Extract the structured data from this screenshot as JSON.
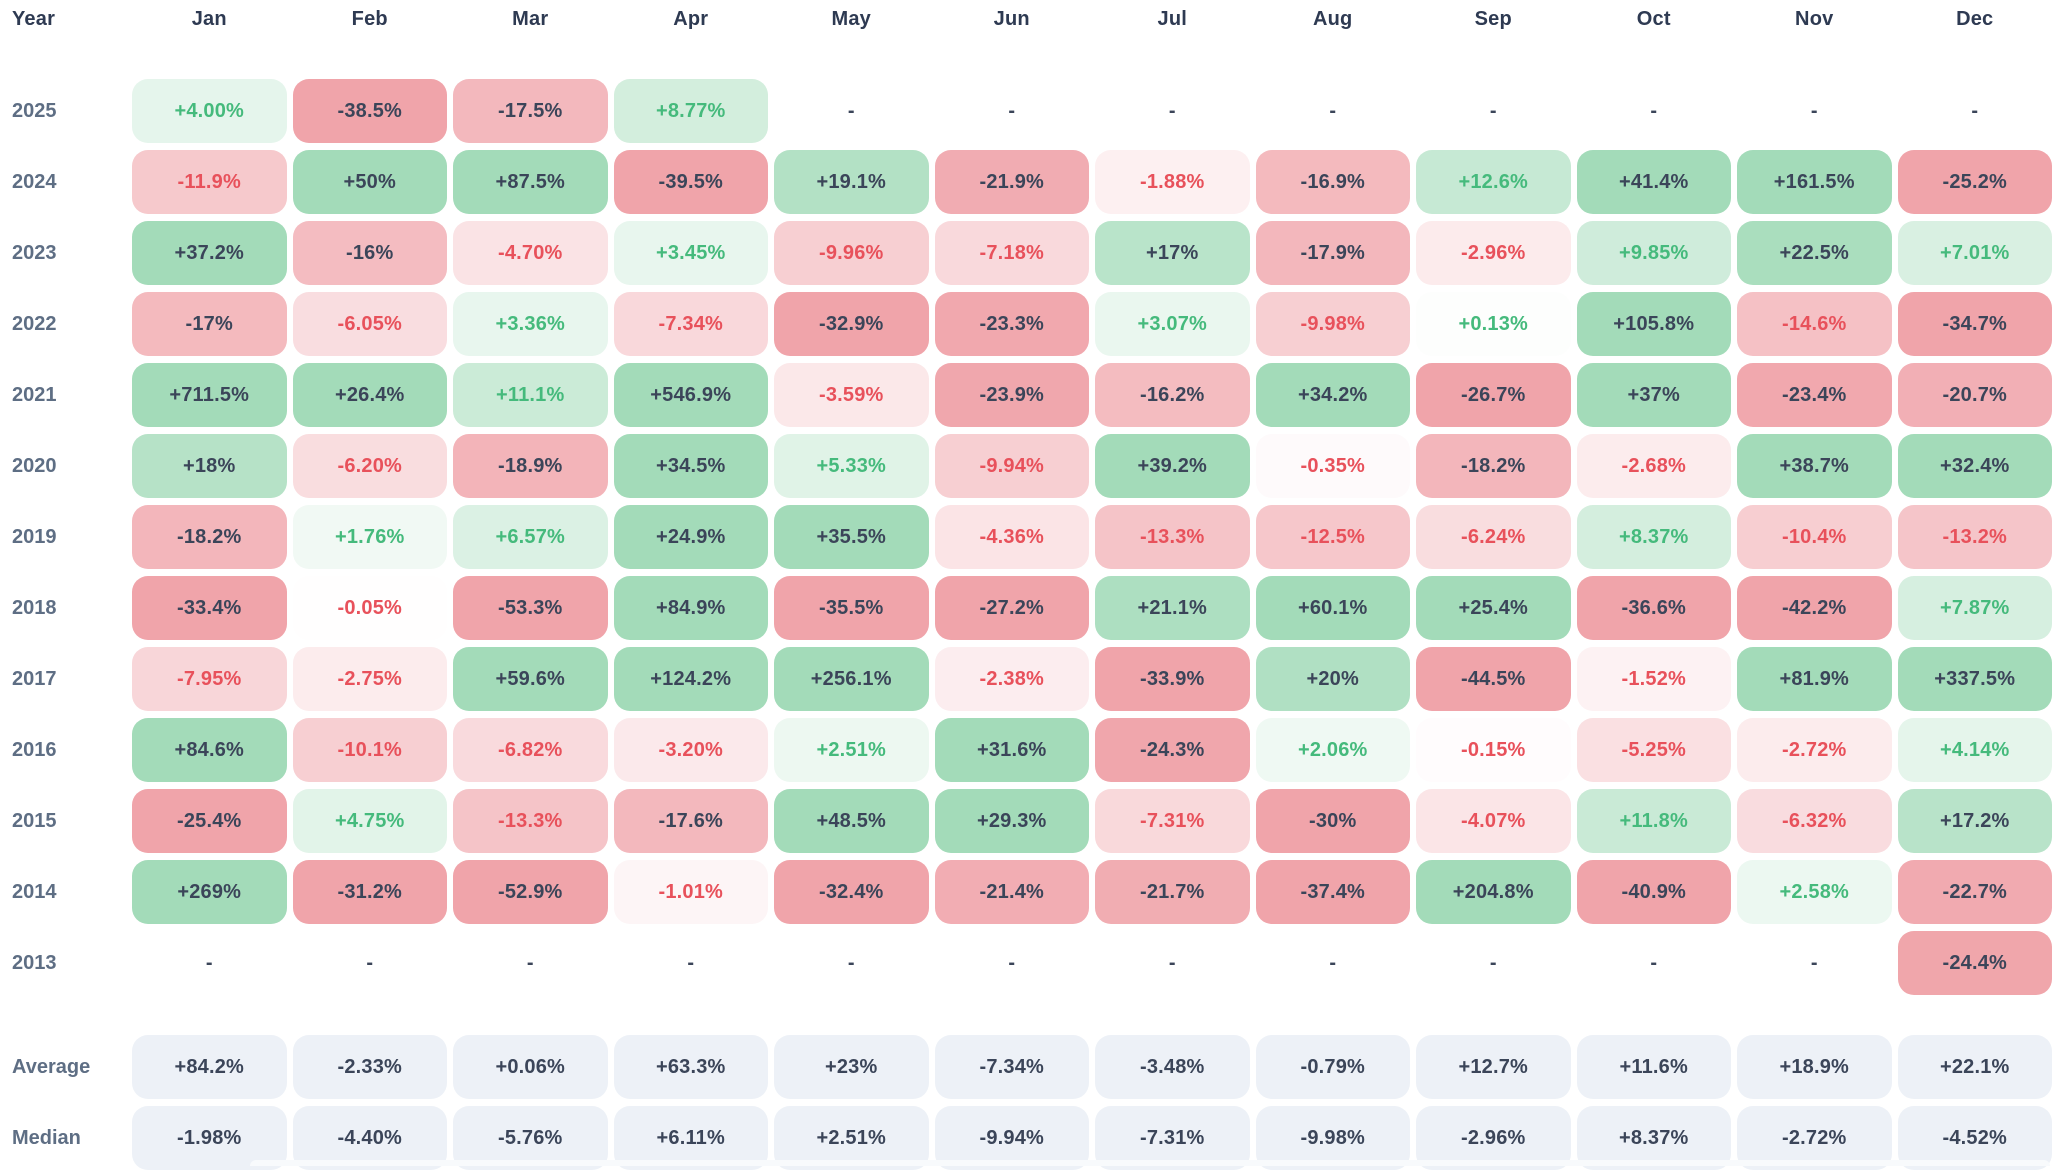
{
  "colors": {
    "background": "#ffffff",
    "positive_cell": "#a3dbb9",
    "negative_cell": "#f0a4aa",
    "positive_text": "#45ba7c",
    "negative_text": "#e8515b",
    "neutral_text": "#3b4559",
    "header_text": "#2e3a52",
    "row_label_text": "#5e6e84",
    "summary_cell_bg": "#edf1f7"
  },
  "table": {
    "year_header": "Year",
    "months": [
      "Jan",
      "Feb",
      "Mar",
      "Apr",
      "May",
      "Jun",
      "Jul",
      "Aug",
      "Sep",
      "Oct",
      "Nov",
      "Dec"
    ],
    "rows": [
      {
        "year": "2025",
        "values": [
          "+4.00%",
          "-38.5%",
          "-17.5%",
          "+8.77%",
          "-",
          "-",
          "-",
          "-",
          "-",
          "-",
          "-",
          "-"
        ]
      },
      {
        "year": "2024",
        "values": [
          "-11.9%",
          "+50%",
          "+87.5%",
          "-39.5%",
          "+19.1%",
          "-21.9%",
          "-1.88%",
          "-16.9%",
          "+12.6%",
          "+41.4%",
          "+161.5%",
          "-25.2%"
        ]
      },
      {
        "year": "2023",
        "values": [
          "+37.2%",
          "-16%",
          "-4.70%",
          "+3.45%",
          "-9.96%",
          "-7.18%",
          "+17%",
          "-17.9%",
          "-2.96%",
          "+9.85%",
          "+22.5%",
          "+7.01%"
        ]
      },
      {
        "year": "2022",
        "values": [
          "-17%",
          "-6.05%",
          "+3.36%",
          "-7.34%",
          "-32.9%",
          "-23.3%",
          "+3.07%",
          "-9.98%",
          "+0.13%",
          "+105.8%",
          "-14.6%",
          "-34.7%"
        ]
      },
      {
        "year": "2021",
        "values": [
          "+711.5%",
          "+26.4%",
          "+11.1%",
          "+546.9%",
          "-3.59%",
          "-23.9%",
          "-16.2%",
          "+34.2%",
          "-26.7%",
          "+37%",
          "-23.4%",
          "-20.7%"
        ]
      },
      {
        "year": "2020",
        "values": [
          "+18%",
          "-6.20%",
          "-18.9%",
          "+34.5%",
          "+5.33%",
          "-9.94%",
          "+39.2%",
          "-0.35%",
          "-18.2%",
          "-2.68%",
          "+38.7%",
          "+32.4%"
        ]
      },
      {
        "year": "2019",
        "values": [
          "-18.2%",
          "+1.76%",
          "+6.57%",
          "+24.9%",
          "+35.5%",
          "-4.36%",
          "-13.3%",
          "-12.5%",
          "-6.24%",
          "+8.37%",
          "-10.4%",
          "-13.2%"
        ]
      },
      {
        "year": "2018",
        "values": [
          "-33.4%",
          "-0.05%",
          "-53.3%",
          "+84.9%",
          "-35.5%",
          "-27.2%",
          "+21.1%",
          "+60.1%",
          "+25.4%",
          "-36.6%",
          "-42.2%",
          "+7.87%"
        ]
      },
      {
        "year": "2017",
        "values": [
          "-7.95%",
          "-2.75%",
          "+59.6%",
          "+124.2%",
          "+256.1%",
          "-2.38%",
          "-33.9%",
          "+20%",
          "-44.5%",
          "-1.52%",
          "+81.9%",
          "+337.5%"
        ]
      },
      {
        "year": "2016",
        "values": [
          "+84.6%",
          "-10.1%",
          "-6.82%",
          "-3.20%",
          "+2.51%",
          "+31.6%",
          "-24.3%",
          "+2.06%",
          "-0.15%",
          "-5.25%",
          "-2.72%",
          "+4.14%"
        ]
      },
      {
        "year": "2015",
        "values": [
          "-25.4%",
          "+4.75%",
          "-13.3%",
          "-17.6%",
          "+48.5%",
          "+29.3%",
          "-7.31%",
          "-30%",
          "-4.07%",
          "+11.8%",
          "-6.32%",
          "+17.2%"
        ]
      },
      {
        "year": "2014",
        "values": [
          "+269%",
          "-31.2%",
          "-52.9%",
          "-1.01%",
          "-32.4%",
          "-21.4%",
          "-21.7%",
          "-37.4%",
          "+204.8%",
          "-40.9%",
          "+2.58%",
          "-22.7%"
        ]
      },
      {
        "year": "2013",
        "values": [
          "-",
          "-",
          "-",
          "-",
          "-",
          "-",
          "-",
          "-",
          "-",
          "-",
          "-",
          "-24.4%"
        ]
      }
    ],
    "summary_rows": [
      {
        "label": "Average",
        "values": [
          "+84.2%",
          "-2.33%",
          "+0.06%",
          "+63.3%",
          "+23%",
          "-7.34%",
          "-3.48%",
          "-0.79%",
          "+12.7%",
          "+11.6%",
          "+18.9%",
          "+22.1%"
        ]
      },
      {
        "label": "Median",
        "values": [
          "-1.98%",
          "-4.40%",
          "-5.76%",
          "+6.11%",
          "+2.51%",
          "-9.94%",
          "-7.31%",
          "-9.98%",
          "-2.96%",
          "+8.37%",
          "-2.72%",
          "-4.52%"
        ]
      }
    ]
  },
  "chart_data": {
    "type": "heatmap",
    "x_categories": [
      "Jan",
      "Feb",
      "Mar",
      "Apr",
      "May",
      "Jun",
      "Jul",
      "Aug",
      "Sep",
      "Oct",
      "Nov",
      "Dec"
    ],
    "y_categories": [
      "2025",
      "2024",
      "2023",
      "2022",
      "2021",
      "2020",
      "2019",
      "2018",
      "2017",
      "2016",
      "2015",
      "2014",
      "2013"
    ],
    "values_percent": [
      [
        4.0,
        -38.5,
        -17.5,
        8.77,
        null,
        null,
        null,
        null,
        null,
        null,
        null,
        null
      ],
      [
        -11.9,
        50,
        87.5,
        -39.5,
        19.1,
        -21.9,
        -1.88,
        -16.9,
        12.6,
        41.4,
        161.5,
        -25.2
      ],
      [
        37.2,
        -16,
        -4.7,
        3.45,
        -9.96,
        -7.18,
        17,
        -17.9,
        -2.96,
        9.85,
        22.5,
        7.01
      ],
      [
        -17,
        -6.05,
        3.36,
        -7.34,
        -32.9,
        -23.3,
        3.07,
        -9.98,
        0.13,
        105.8,
        -14.6,
        -34.7
      ],
      [
        711.5,
        26.4,
        11.1,
        546.9,
        -3.59,
        -23.9,
        -16.2,
        34.2,
        -26.7,
        37,
        -23.4,
        -20.7
      ],
      [
        18,
        -6.2,
        -18.9,
        34.5,
        5.33,
        -9.94,
        39.2,
        -0.35,
        -18.2,
        -2.68,
        38.7,
        32.4
      ],
      [
        -18.2,
        1.76,
        6.57,
        24.9,
        35.5,
        -4.36,
        -13.3,
        -12.5,
        -6.24,
        8.37,
        -10.4,
        -13.2
      ],
      [
        -33.4,
        -0.05,
        -53.3,
        84.9,
        -35.5,
        -27.2,
        21.1,
        60.1,
        25.4,
        -36.6,
        -42.2,
        7.87
      ],
      [
        -7.95,
        -2.75,
        59.6,
        124.2,
        256.1,
        -2.38,
        -33.9,
        20,
        -44.5,
        -1.52,
        81.9,
        337.5
      ],
      [
        84.6,
        -10.1,
        -6.82,
        -3.2,
        2.51,
        31.6,
        -24.3,
        2.06,
        -0.15,
        -5.25,
        -2.72,
        4.14
      ],
      [
        -25.4,
        4.75,
        -13.3,
        -17.6,
        48.5,
        29.3,
        -7.31,
        -30,
        -4.07,
        11.8,
        -6.32,
        17.2
      ],
      [
        269,
        -31.2,
        -52.9,
        -1.01,
        -32.4,
        -21.4,
        -21.7,
        -37.4,
        204.8,
        -40.9,
        2.58,
        -22.7
      ],
      [
        null,
        null,
        null,
        null,
        null,
        null,
        null,
        null,
        null,
        null,
        null,
        -24.4
      ]
    ],
    "summary": {
      "Average": [
        84.2,
        -2.33,
        0.06,
        63.3,
        23,
        -7.34,
        -3.48,
        -0.79,
        12.7,
        11.6,
        18.9,
        22.1
      ],
      "Median": [
        -1.98,
        -4.4,
        -5.76,
        6.11,
        2.51,
        -9.94,
        -7.31,
        -9.98,
        -2.96,
        8.37,
        -2.72,
        -4.52
      ]
    },
    "color_scale": {
      "positive": "#a3dbb9",
      "negative": "#f0a4aa",
      "missing_marker": "-"
    },
    "legend_position": "none",
    "grid": false
  }
}
